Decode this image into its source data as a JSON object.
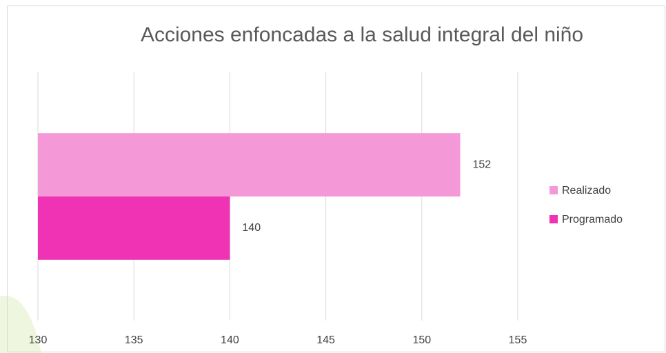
{
  "chart_data": {
    "type": "bar",
    "orientation": "horizontal",
    "title": "Acciones enfoncadas a la salud integral del niño",
    "categories": [
      null
    ],
    "series": [
      {
        "name": "Realizado",
        "color": "#f598d8",
        "values": [
          152
        ]
      },
      {
        "name": "Programado",
        "color": "#f032b4",
        "values": [
          140
        ]
      }
    ],
    "xlim": [
      130,
      155
    ],
    "xticks": [
      130,
      135,
      140,
      145,
      150,
      155
    ],
    "grid": true,
    "legend": "right"
  }
}
